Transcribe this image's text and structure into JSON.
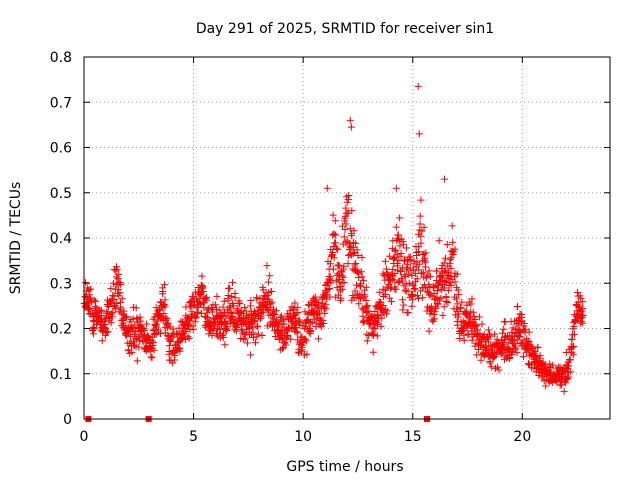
{
  "chart_data": {
    "type": "scatter",
    "title": "Day 291 of 2025, SRMTID for receiver sin1",
    "xlabel": "GPS time / hours",
    "ylabel": "SRMTID / TECUs",
    "xlim": [
      0,
      24
    ],
    "ylim": [
      0,
      0.8
    ],
    "x_ticks": [
      0,
      5,
      10,
      15,
      20
    ],
    "x_tick_labels": [
      "0",
      "5",
      "10",
      "15",
      "20"
    ],
    "y_ticks": [
      0,
      0.1,
      0.2,
      0.3,
      0.4,
      0.5,
      0.6,
      0.7,
      0.8
    ],
    "y_tick_labels": [
      "0",
      "0.1",
      "0.2",
      "0.3",
      "0.4",
      "0.5",
      "0.6",
      "0.7",
      "0.8"
    ],
    "grid": true,
    "marker": "plus",
    "color": "#ff0000",
    "zero_markers_x": [
      0.2,
      2.95,
      15.65
    ],
    "series": [
      {
        "name": "sin1",
        "x": [
          0.0,
          0.3,
          0.6,
          0.9,
          1.2,
          1.5,
          1.8,
          2.1,
          2.4,
          2.7,
          3.0,
          3.3,
          3.6,
          3.9,
          4.2,
          4.5,
          4.8,
          5.1,
          5.4,
          5.7,
          6.0,
          6.3,
          6.6,
          6.9,
          7.2,
          7.5,
          7.8,
          8.1,
          8.4,
          8.7,
          9.0,
          9.3,
          9.6,
          9.9,
          10.2,
          10.5,
          10.8,
          11.1,
          11.4,
          11.7,
          12.0,
          12.3,
          12.6,
          12.9,
          13.2,
          13.5,
          13.8,
          14.1,
          14.4,
          14.7,
          15.0,
          15.3,
          15.6,
          15.9,
          16.2,
          16.5,
          16.8,
          17.1,
          17.4,
          17.7,
          18.0,
          18.3,
          18.6,
          18.9,
          19.2,
          19.5,
          19.8,
          20.1,
          20.4,
          20.7,
          21.0,
          21.3,
          21.6,
          21.9,
          22.2,
          22.5,
          22.8
        ],
        "y": [
          0.28,
          0.25,
          0.22,
          0.21,
          0.24,
          0.3,
          0.22,
          0.19,
          0.2,
          0.18,
          0.17,
          0.2,
          0.26,
          0.17,
          0.16,
          0.19,
          0.22,
          0.25,
          0.27,
          0.21,
          0.23,
          0.2,
          0.25,
          0.23,
          0.22,
          0.2,
          0.21,
          0.25,
          0.27,
          0.21,
          0.18,
          0.2,
          0.22,
          0.17,
          0.21,
          0.24,
          0.22,
          0.28,
          0.38,
          0.3,
          0.45,
          0.35,
          0.3,
          0.23,
          0.2,
          0.24,
          0.3,
          0.33,
          0.36,
          0.3,
          0.29,
          0.38,
          0.3,
          0.25,
          0.32,
          0.28,
          0.35,
          0.22,
          0.2,
          0.22,
          0.18,
          0.16,
          0.15,
          0.16,
          0.17,
          0.16,
          0.2,
          0.18,
          0.14,
          0.12,
          0.1,
          0.09,
          0.09,
          0.1,
          0.13,
          0.25,
          0.23
        ],
        "spread": [
          0.07,
          0.08,
          0.05,
          0.05,
          0.08,
          0.1,
          0.07,
          0.07,
          0.09,
          0.05,
          0.05,
          0.06,
          0.08,
          0.06,
          0.05,
          0.06,
          0.06,
          0.06,
          0.06,
          0.06,
          0.06,
          0.06,
          0.08,
          0.06,
          0.06,
          0.07,
          0.07,
          0.08,
          0.1,
          0.06,
          0.07,
          0.06,
          0.07,
          0.06,
          0.07,
          0.07,
          0.07,
          0.08,
          0.12,
          0.1,
          0.21,
          0.12,
          0.1,
          0.07,
          0.06,
          0.07,
          0.1,
          0.12,
          0.15,
          0.1,
          0.1,
          0.18,
          0.12,
          0.08,
          0.12,
          0.1,
          0.14,
          0.07,
          0.06,
          0.07,
          0.07,
          0.06,
          0.06,
          0.06,
          0.06,
          0.07,
          0.07,
          0.07,
          0.05,
          0.05,
          0.04,
          0.04,
          0.03,
          0.04,
          0.05,
          0.05,
          0.05
        ]
      }
    ],
    "outliers": [
      {
        "x": 15.25,
        "y": 0.735
      },
      {
        "x": 15.3,
        "y": 0.63
      },
      {
        "x": 12.15,
        "y": 0.66
      },
      {
        "x": 12.2,
        "y": 0.645
      },
      {
        "x": 11.1,
        "y": 0.51
      },
      {
        "x": 14.25,
        "y": 0.51
      },
      {
        "x": 16.45,
        "y": 0.53
      }
    ]
  }
}
